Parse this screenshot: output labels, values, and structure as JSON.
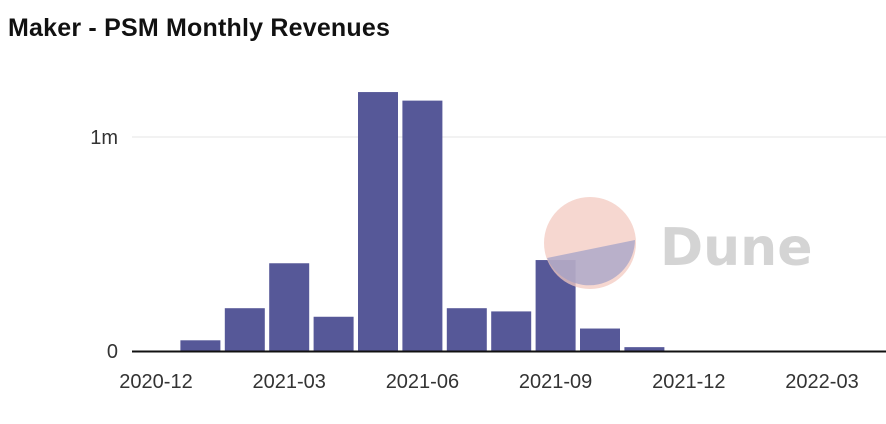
{
  "chart_data": {
    "type": "bar",
    "title": "Maker - PSM Monthly Revenues",
    "xlabel": "",
    "ylabel": "",
    "categories": [
      "2020-12",
      "2021-01",
      "2021-02",
      "2021-03",
      "2021-04",
      "2021-05",
      "2021-06",
      "2021-07",
      "2021-08",
      "2021-09",
      "2021-10",
      "2021-11",
      "2021-12",
      "2022-01",
      "2022-02",
      "2022-03",
      "2022-04"
    ],
    "values": [
      0,
      50000,
      200000,
      410000,
      160000,
      1210000,
      1170000,
      200000,
      185000,
      425000,
      105000,
      18000,
      0,
      0,
      0,
      0,
      0
    ],
    "ylim": [
      0,
      1200000
    ],
    "y_ticks": [
      {
        "value": 0,
        "label": "0"
      },
      {
        "value": 1000000,
        "label": "1m"
      }
    ],
    "x_tick_labels": [
      "2020-12",
      "2021-03",
      "2021-06",
      "2021-09",
      "2021-12",
      "2022-03"
    ],
    "grid": true,
    "bar_color": "#565898",
    "watermark": "Dune"
  }
}
